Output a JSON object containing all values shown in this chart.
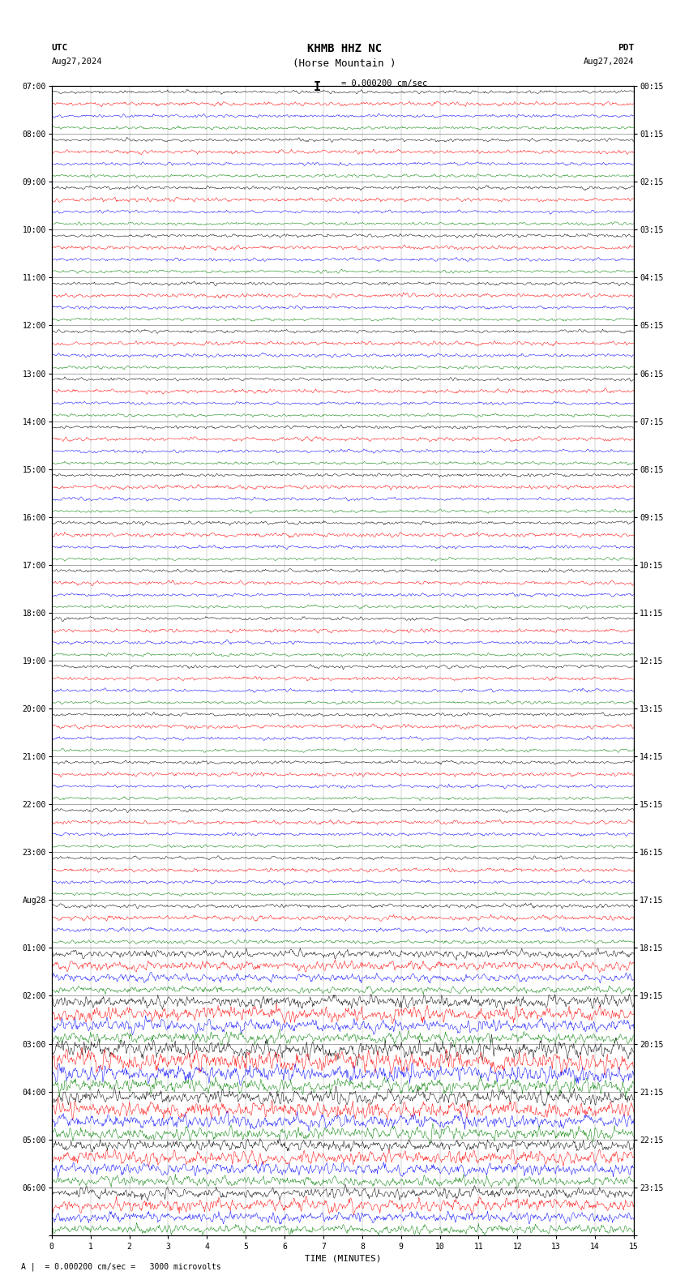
{
  "title_line1": "KHMB HHZ NC",
  "title_line2": "(Horse Mountain )",
  "scale_text": "I = 0.000200 cm/sec",
  "utc_label": "UTC",
  "pdt_label": "PDT",
  "date_left": "Aug27,2024",
  "date_right": "Aug27,2024",
  "xlabel": "TIME (MINUTES)",
  "footer_text": "A |  = 0.000200 cm/sec =   3000 microvolts",
  "xmin": 0,
  "xmax": 15,
  "num_points": 900,
  "colors": [
    "black",
    "red",
    "blue",
    "green"
  ],
  "background": "white",
  "utc_row_labels": [
    "07:00",
    "08:00",
    "09:00",
    "10:00",
    "11:00",
    "12:00",
    "13:00",
    "14:00",
    "15:00",
    "16:00",
    "17:00",
    "18:00",
    "19:00",
    "20:00",
    "21:00",
    "22:00",
    "23:00",
    "Aug28",
    "01:00",
    "02:00",
    "03:00",
    "04:00",
    "05:00",
    "06:00"
  ],
  "pdt_row_labels": [
    "00:15",
    "01:15",
    "02:15",
    "03:15",
    "04:15",
    "05:15",
    "06:15",
    "07:15",
    "08:15",
    "09:15",
    "10:15",
    "11:15",
    "12:15",
    "13:15",
    "14:15",
    "15:15",
    "16:15",
    "17:15",
    "18:15",
    "19:15",
    "20:15",
    "21:15",
    "22:15",
    "23:15"
  ],
  "num_rows": 24,
  "traces_per_row": 4,
  "noise_seed": 42,
  "amplitude_base": 0.28,
  "amplitude_scale": [
    0.28,
    0.28,
    0.28,
    0.28,
    0.28,
    0.28,
    0.28,
    0.28,
    0.28,
    0.28,
    0.28,
    0.28,
    0.28,
    0.28,
    0.28,
    0.28,
    0.28,
    0.35,
    0.7,
    1.1,
    1.5,
    1.2,
    1.0,
    0.9
  ],
  "trace_amplitude_scale": [
    1.0,
    1.2,
    1.0,
    0.9
  ]
}
